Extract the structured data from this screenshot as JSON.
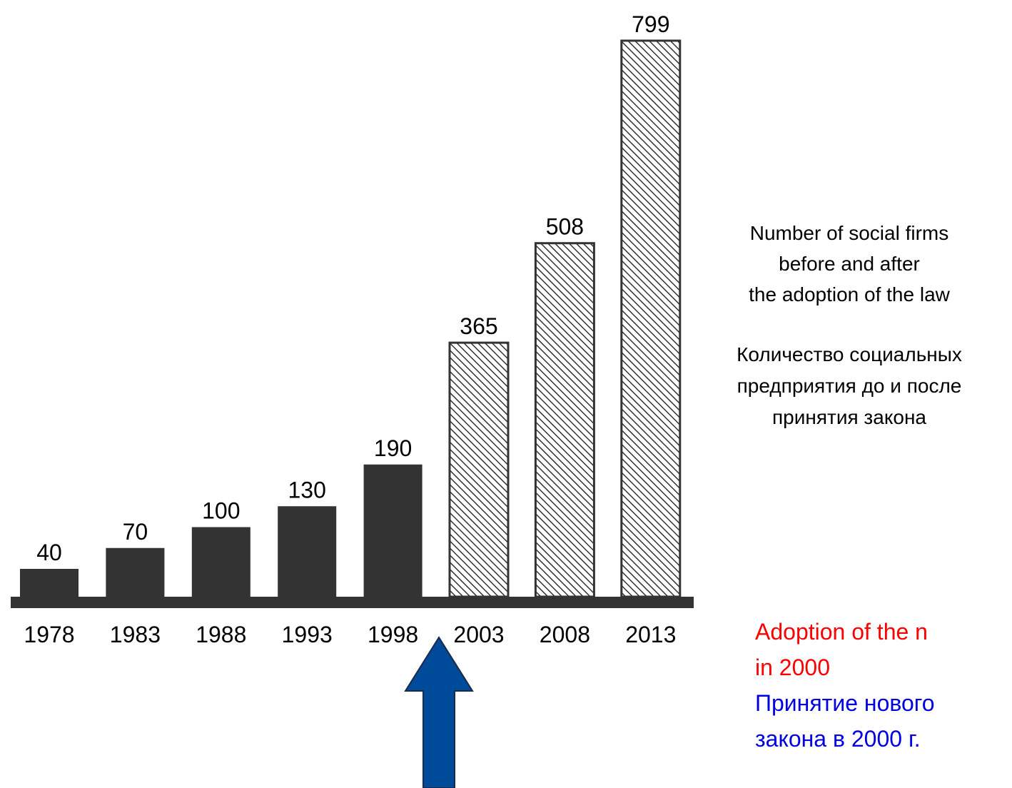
{
  "chart_data": {
    "type": "bar",
    "categories": [
      "1978",
      "1983",
      "1988",
      "1993",
      "1998",
      "2003",
      "2008",
      "2013"
    ],
    "values": [
      40,
      70,
      100,
      130,
      190,
      365,
      508,
      799
    ],
    "color": "#333333",
    "hatched": [
      false,
      false,
      false,
      false,
      false,
      true,
      true,
      true
    ],
    "annotations": {
      "description_en": [
        "Number of social firms",
        "before and after",
        "the adoption of the law"
      ],
      "description_ru": [
        "Количество социальных",
        "предприятия до и после",
        "принятия закона"
      ],
      "law_en": [
        "Adoption of the n",
        "in 2000"
      ],
      "law_ru": [
        "Принятие нового",
        "закона в 2000 г."
      ]
    }
  }
}
